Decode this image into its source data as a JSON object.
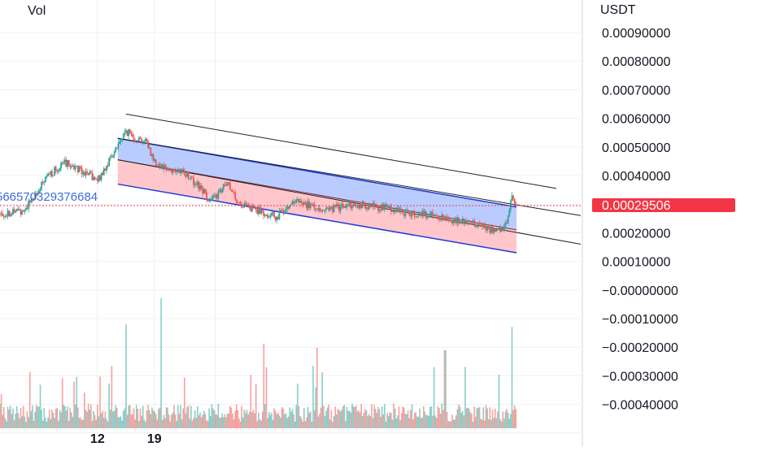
{
  "header": {
    "volume_label": "Vol"
  },
  "axis": {
    "currency": "USDT"
  },
  "price_badge": {
    "value": "0.00029506",
    "color": "#f23645"
  },
  "overlay_text": "566570329376684",
  "colors": {
    "up": "#26a69a",
    "down": "#ef5350",
    "channel_upper_fill": "#b3c7ff",
    "channel_lower_fill": "#ffc1c6",
    "channel_line": "#1e3bd6",
    "trend_line": "#222222",
    "grid": "#eef0f3",
    "axis_text": "#131722",
    "overlay_text": "#3f6bd8"
  },
  "chart_data": {
    "type": "candlestick",
    "title": "",
    "xlabel": "",
    "ylabel": "USDT",
    "ylim": [
      -0.00049,
      0.00099
    ],
    "y_ticks": [
      "0.00090000",
      "0.00080000",
      "0.00070000",
      "0.00060000",
      "0.00050000",
      "0.00040000",
      "0.00020000",
      "0.00010000",
      "−0.00000000",
      "−0.00010000",
      "−0.00020000",
      "−0.00030000",
      "−0.00040000"
    ],
    "x_ticks": [
      "12",
      "19"
    ],
    "last_price": 0.00029506,
    "grid": true,
    "price_path": [
      [
        0,
        0.000265
      ],
      [
        3,
        0.00028
      ],
      [
        6,
        0.0004
      ],
      [
        8,
        0.000445
      ],
      [
        10,
        0.00042
      ],
      [
        12,
        0.00038
      ],
      [
        14,
        0.00048
      ],
      [
        15.5,
        0.000555
      ],
      [
        16.5,
        0.000535
      ],
      [
        18,
        0.00052
      ],
      [
        19,
        0.00045
      ],
      [
        21,
        0.00042
      ],
      [
        23,
        0.000405
      ],
      [
        25,
        0.000345
      ],
      [
        26,
        0.00031
      ],
      [
        28,
        0.00037
      ],
      [
        29,
        0.00032
      ],
      [
        30,
        0.00029
      ],
      [
        31,
        0.000285
      ],
      [
        33,
        0.000265
      ],
      [
        34,
        0.000255
      ],
      [
        36,
        0.00031
      ],
      [
        38,
        0.000295
      ],
      [
        40,
        0.00028
      ],
      [
        42,
        0.00029
      ],
      [
        44,
        0.0003
      ],
      [
        46,
        0.00029
      ],
      [
        48,
        0.000285
      ],
      [
        50,
        0.00027
      ],
      [
        52,
        0.000265
      ],
      [
        54,
        0.000255
      ],
      [
        56,
        0.000245
      ],
      [
        58,
        0.000235
      ],
      [
        60,
        0.00022
      ],
      [
        61,
        0.0002
      ],
      [
        62,
        0.000215
      ],
      [
        62.6,
        0.000255
      ],
      [
        63,
        0.00032
      ],
      [
        63.6,
        0.0003
      ]
    ],
    "volume_peaks": [
      [
        15.5,
        0.8
      ],
      [
        19.8,
        1.0
      ],
      [
        32.5,
        0.65
      ],
      [
        39,
        0.62
      ],
      [
        54.8,
        0.6
      ],
      [
        63,
        0.78
      ]
    ],
    "channel": {
      "start": 14.5,
      "end": 63.6,
      "upper_start": 0.00053,
      "upper_end": 0.00029,
      "mid_start": 0.000455,
      "mid_end": 0.00021,
      "lower_start": 0.00037,
      "lower_end": 0.00013
    },
    "trend_lines": [
      {
        "from": [
          15.5,
          0.000615
        ],
        "to": [
          68.5,
          0.000355
        ]
      },
      {
        "from": [
          14.5,
          0.00053
        ],
        "to": [
          71.5,
          0.00026
        ]
      },
      {
        "from": [
          14.5,
          0.000455
        ],
        "to": [
          71.5,
          0.00016
        ]
      }
    ],
    "x_domain": [
      0,
      71.5
    ]
  }
}
